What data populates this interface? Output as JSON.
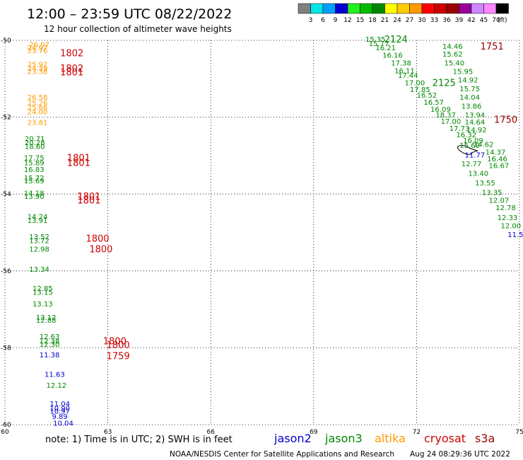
{
  "title": "12:00 – 23:59 UTC 08/22/2022",
  "subtitle": "12 hour collection of altimeter wave heights",
  "legend": {
    "unit": "(ft)",
    "bins": [
      {
        "color": "#808080",
        "label": "3"
      },
      {
        "color": "#00e5e5",
        "label": "6"
      },
      {
        "color": "#00a0ff",
        "label": "9"
      },
      {
        "color": "#0000d0",
        "label": "12"
      },
      {
        "color": "#22ee22",
        "label": "15"
      },
      {
        "color": "#00bb00",
        "label": "18"
      },
      {
        "color": "#008800",
        "label": "21"
      },
      {
        "color": "#ffff00",
        "label": "24"
      },
      {
        "color": "#ffcc00",
        "label": "27"
      },
      {
        "color": "#ff9900",
        "label": "30"
      },
      {
        "color": "#ff0000",
        "label": "33"
      },
      {
        "color": "#cc0000",
        "label": "36"
      },
      {
        "color": "#990000",
        "label": "39"
      },
      {
        "color": "#990099",
        "label": "42"
      },
      {
        "color": "#cc88ff",
        "label": "45"
      },
      {
        "color": "#ff88ff",
        "label": "70"
      },
      {
        "color": "#000000",
        "label": ""
      }
    ]
  },
  "axes": {
    "lon_ticks": [
      "60",
      "63",
      "66",
      "69",
      "72",
      "75"
    ],
    "lat_ticks": [
      "-50",
      "-52",
      "-54",
      "-56",
      "-58",
      "-60"
    ]
  },
  "satellite_colors": {
    "jason2": "#0000cc",
    "jason3": "#008800",
    "altika": "#ff9900",
    "cryosat": "#cc0000",
    "s3a": "#990000"
  },
  "tracks": [
    {
      "name": "left-track",
      "points": [
        {
          "lon": 61.0,
          "lat": -50.1,
          "v": "26.07",
          "sat": "altika"
        },
        {
          "lon": 60.95,
          "lat": -50.18,
          "v": "24.97",
          "sat": "altika"
        },
        {
          "lon": 60.95,
          "lat": -50.26,
          "v": "23.76",
          "sat": "altika"
        },
        {
          "lon": 60.95,
          "lat": -50.62,
          "v": "25.92",
          "sat": "altika"
        },
        {
          "lon": 60.95,
          "lat": -50.72,
          "v": "24.39",
          "sat": "altika"
        },
        {
          "lon": 60.95,
          "lat": -50.8,
          "v": "23.38",
          "sat": "altika"
        },
        {
          "lon": 60.95,
          "lat": -51.47,
          "v": "26.58",
          "sat": "altika"
        },
        {
          "lon": 60.95,
          "lat": -51.62,
          "v": "25.26",
          "sat": "altika"
        },
        {
          "lon": 60.95,
          "lat": -51.73,
          "v": "25.66",
          "sat": "altika"
        },
        {
          "lon": 60.95,
          "lat": -51.85,
          "v": "24.00",
          "sat": "altika"
        },
        {
          "lon": 60.95,
          "lat": -52.13,
          "v": "23.81",
          "sat": "altika"
        },
        {
          "lon": 60.87,
          "lat": -52.55,
          "v": "20.71",
          "sat": "jason3"
        },
        {
          "lon": 60.87,
          "lat": -52.65,
          "v": "20.28",
          "sat": "jason3"
        },
        {
          "lon": 60.87,
          "lat": -52.75,
          "v": "18.60",
          "sat": "jason3"
        },
        {
          "lon": 60.85,
          "lat": -53.05,
          "v": "17.75",
          "sat": "jason3"
        },
        {
          "lon": 60.85,
          "lat": -53.18,
          "v": "15.89",
          "sat": "jason3"
        },
        {
          "lon": 60.85,
          "lat": -53.35,
          "v": "16.83",
          "sat": "jason3"
        },
        {
          "lon": 60.85,
          "lat": -53.57,
          "v": "15.72",
          "sat": "jason3"
        },
        {
          "lon": 60.85,
          "lat": -53.65,
          "v": "15.69",
          "sat": "jason3"
        },
        {
          "lon": 60.85,
          "lat": -53.97,
          "v": "14.18",
          "sat": "jason3"
        },
        {
          "lon": 60.85,
          "lat": -54.05,
          "v": "13.90",
          "sat": "jason3"
        },
        {
          "lon": 60.95,
          "lat": -54.58,
          "v": "14.24",
          "sat": "jason3"
        },
        {
          "lon": 60.95,
          "lat": -54.68,
          "v": "13.91",
          "sat": "jason3"
        },
        {
          "lon": 61.0,
          "lat": -55.1,
          "v": "13.52",
          "sat": "jason3"
        },
        {
          "lon": 61.0,
          "lat": -55.2,
          "v": "13.72",
          "sat": "jason3"
        },
        {
          "lon": 61.0,
          "lat": -55.42,
          "v": "12.98",
          "sat": "jason3"
        },
        {
          "lon": 61.0,
          "lat": -55.95,
          "v": "13.34",
          "sat": "jason3"
        },
        {
          "lon": 61.1,
          "lat": -56.45,
          "v": "12.85",
          "sat": "jason3"
        },
        {
          "lon": 61.1,
          "lat": -56.55,
          "v": "13.15",
          "sat": "jason3"
        },
        {
          "lon": 61.1,
          "lat": -56.85,
          "v": "13.13",
          "sat": "jason3"
        },
        {
          "lon": 61.2,
          "lat": -57.2,
          "v": "13.12",
          "sat": "jason3"
        },
        {
          "lon": 61.2,
          "lat": -57.27,
          "v": "12.88",
          "sat": "jason3"
        },
        {
          "lon": 61.3,
          "lat": -57.7,
          "v": "12.63",
          "sat": "jason3"
        },
        {
          "lon": 61.3,
          "lat": -57.82,
          "v": "12.38",
          "sat": "jason3"
        },
        {
          "lon": 61.3,
          "lat": -57.9,
          "v": "12.30",
          "sat": "jason3"
        },
        {
          "lon": 61.3,
          "lat": -58.18,
          "v": "11.38",
          "sat": "jason2"
        },
        {
          "lon": 61.45,
          "lat": -58.68,
          "v": "11.63",
          "sat": "jason2"
        },
        {
          "lon": 61.5,
          "lat": -58.97,
          "v": "12.12",
          "sat": "jason3"
        },
        {
          "lon": 61.6,
          "lat": -59.45,
          "v": "11.04",
          "sat": "jason2"
        },
        {
          "lon": 61.6,
          "lat": -59.57,
          "v": "10.90",
          "sat": "jason2"
        },
        {
          "lon": 61.6,
          "lat": -59.64,
          "v": "10.97",
          "sat": "jason2"
        },
        {
          "lon": 61.6,
          "lat": -59.78,
          "v": "9.89",
          "sat": "jason2"
        },
        {
          "lon": 61.7,
          "lat": -59.95,
          "v": "10.04",
          "sat": "jason2"
        }
      ]
    },
    {
      "name": "right-track",
      "points": [
        {
          "lon": 70.8,
          "lat": -49.96,
          "v": "15.35",
          "sat": "jason3"
        },
        {
          "lon": 70.9,
          "lat": -50.07,
          "v": "15.77",
          "sat": "jason3"
        },
        {
          "lon": 71.1,
          "lat": -50.18,
          "v": "16.21",
          "sat": "jason3"
        },
        {
          "lon": 71.3,
          "lat": -50.38,
          "v": "16.16",
          "sat": "jason3"
        },
        {
          "lon": 71.55,
          "lat": -50.58,
          "v": "17.38",
          "sat": "jason3"
        },
        {
          "lon": 71.65,
          "lat": -50.78,
          "v": "16.11",
          "sat": "jason3"
        },
        {
          "lon": 71.75,
          "lat": -50.9,
          "v": "17.44",
          "sat": "jason3"
        },
        {
          "lon": 71.95,
          "lat": -51.1,
          "v": "17.00",
          "sat": "jason3"
        },
        {
          "lon": 72.1,
          "lat": -51.27,
          "v": "17.85",
          "sat": "jason3"
        },
        {
          "lon": 72.3,
          "lat": -51.42,
          "v": "16.52",
          "sat": "jason3"
        },
        {
          "lon": 72.5,
          "lat": -51.6,
          "v": "16.57",
          "sat": "jason3"
        },
        {
          "lon": 72.7,
          "lat": -51.79,
          "v": "16.09",
          "sat": "jason3"
        },
        {
          "lon": 72.85,
          "lat": -51.93,
          "v": "18.37",
          "sat": "jason3"
        },
        {
          "lon": 73.0,
          "lat": -52.1,
          "v": "17.00",
          "sat": "jason3"
        },
        {
          "lon": 73.25,
          "lat": -52.28,
          "v": "17.73",
          "sat": "jason3"
        },
        {
          "lon": 73.45,
          "lat": -52.45,
          "v": "16.32",
          "sat": "jason3"
        },
        {
          "lon": 73.65,
          "lat": -52.6,
          "v": "16.09",
          "sat": "jason3"
        },
        {
          "lon": 73.55,
          "lat": -52.73,
          "v": "15.69",
          "sat": "jason3"
        },
        {
          "lon": 73.05,
          "lat": -50.15,
          "v": "14.46",
          "sat": "jason3"
        },
        {
          "lon": 73.05,
          "lat": -50.35,
          "v": "15.62",
          "sat": "jason3"
        },
        {
          "lon": 73.1,
          "lat": -50.58,
          "v": "15.40",
          "sat": "jason3"
        },
        {
          "lon": 73.35,
          "lat": -50.8,
          "v": "15.95",
          "sat": "jason3"
        },
        {
          "lon": 73.5,
          "lat": -51.02,
          "v": "14.92",
          "sat": "jason3"
        },
        {
          "lon": 73.55,
          "lat": -51.25,
          "v": "15.75",
          "sat": "jason3"
        },
        {
          "lon": 73.55,
          "lat": -51.47,
          "v": "14.04",
          "sat": "jason3"
        },
        {
          "lon": 73.6,
          "lat": -51.7,
          "v": "13.86",
          "sat": "jason3"
        },
        {
          "lon": 73.7,
          "lat": -51.93,
          "v": "13.94",
          "sat": "jason3"
        },
        {
          "lon": 73.7,
          "lat": -52.12,
          "v": "14.64",
          "sat": "jason3"
        },
        {
          "lon": 73.75,
          "lat": -52.32,
          "v": "14.92",
          "sat": "jason3"
        },
        {
          "lon": 73.95,
          "lat": -52.7,
          "v": "14.62",
          "sat": "jason3"
        },
        {
          "lon": 74.3,
          "lat": -52.9,
          "v": "14.37",
          "sat": "jason3"
        },
        {
          "lon": 74.35,
          "lat": -53.08,
          "v": "16.46",
          "sat": "jason3"
        },
        {
          "lon": 74.4,
          "lat": -53.25,
          "v": "16.67",
          "sat": "jason3"
        },
        {
          "lon": 73.7,
          "lat": -52.97,
          "v": "11.77",
          "sat": "jason2"
        },
        {
          "lon": 73.6,
          "lat": -53.2,
          "v": "12.77",
          "sat": "jason3"
        },
        {
          "lon": 73.8,
          "lat": -53.45,
          "v": "13.40",
          "sat": "jason3"
        },
        {
          "lon": 74.0,
          "lat": -53.7,
          "v": "13.55",
          "sat": "jason3"
        },
        {
          "lon": 74.2,
          "lat": -53.95,
          "v": "13.35",
          "sat": "jason3"
        },
        {
          "lon": 74.4,
          "lat": -54.15,
          "v": "12.07",
          "sat": "jason3"
        },
        {
          "lon": 74.6,
          "lat": -54.35,
          "v": "12.78",
          "sat": "jason3"
        },
        {
          "lon": 74.65,
          "lat": -54.6,
          "v": "12.33",
          "sat": "jason3"
        },
        {
          "lon": 74.75,
          "lat": -54.82,
          "v": "12.00",
          "sat": "jason3"
        },
        {
          "lon": 74.95,
          "lat": -55.05,
          "v": "11.50",
          "sat": "jason2"
        }
      ]
    }
  ],
  "time_labels": [
    {
      "lon": 61.95,
      "lat": -50.32,
      "t": "1802",
      "sat": "cryosat"
    },
    {
      "lon": 61.95,
      "lat": -50.72,
      "t": "1802",
      "sat": "cryosat"
    },
    {
      "lon": 61.95,
      "lat": -50.82,
      "t": "1801",
      "sat": "cryosat"
    },
    {
      "lon": 62.15,
      "lat": -53.05,
      "t": "1801",
      "sat": "cryosat"
    },
    {
      "lon": 62.15,
      "lat": -53.18,
      "t": "1801",
      "sat": "cryosat"
    },
    {
      "lon": 62.45,
      "lat": -54.05,
      "t": "1801",
      "sat": "cryosat"
    },
    {
      "lon": 62.45,
      "lat": -54.15,
      "t": "1801",
      "sat": "cryosat"
    },
    {
      "lon": 62.7,
      "lat": -55.15,
      "t": "1800",
      "sat": "cryosat"
    },
    {
      "lon": 62.8,
      "lat": -55.42,
      "t": "1800",
      "sat": "cryosat"
    },
    {
      "lon": 63.2,
      "lat": -57.82,
      "t": "1800",
      "sat": "cryosat"
    },
    {
      "lon": 63.3,
      "lat": -57.92,
      "t": "1800",
      "sat": "cryosat"
    },
    {
      "lon": 63.3,
      "lat": -58.2,
      "t": "1759",
      "sat": "cryosat"
    },
    {
      "lon": 71.4,
      "lat": -49.96,
      "t": "2124",
      "sat": "jason3"
    },
    {
      "lon": 72.8,
      "lat": -51.1,
      "t": "2125",
      "sat": "jason3"
    },
    {
      "lon": 74.2,
      "lat": -50.15,
      "t": "1751",
      "sat": "s3a"
    },
    {
      "lon": 74.6,
      "lat": -52.05,
      "t": "1750",
      "sat": "s3a"
    }
  ],
  "note": "note:  1) Time is in UTC;  2) SWH is in feet",
  "satellites": [
    {
      "key": "jason2",
      "label": "jason2"
    },
    {
      "key": "jason3",
      "label": "jason3"
    },
    {
      "key": "altika",
      "label": "altika"
    },
    {
      "key": "cryosat",
      "label": "cryosat"
    },
    {
      "key": "s3a",
      "label": "s3a"
    }
  ],
  "credit": "NOAA/NESDIS Center for Satellite Applications and Research",
  "generated": "Aug 24 08:29:36 UTC 2022"
}
